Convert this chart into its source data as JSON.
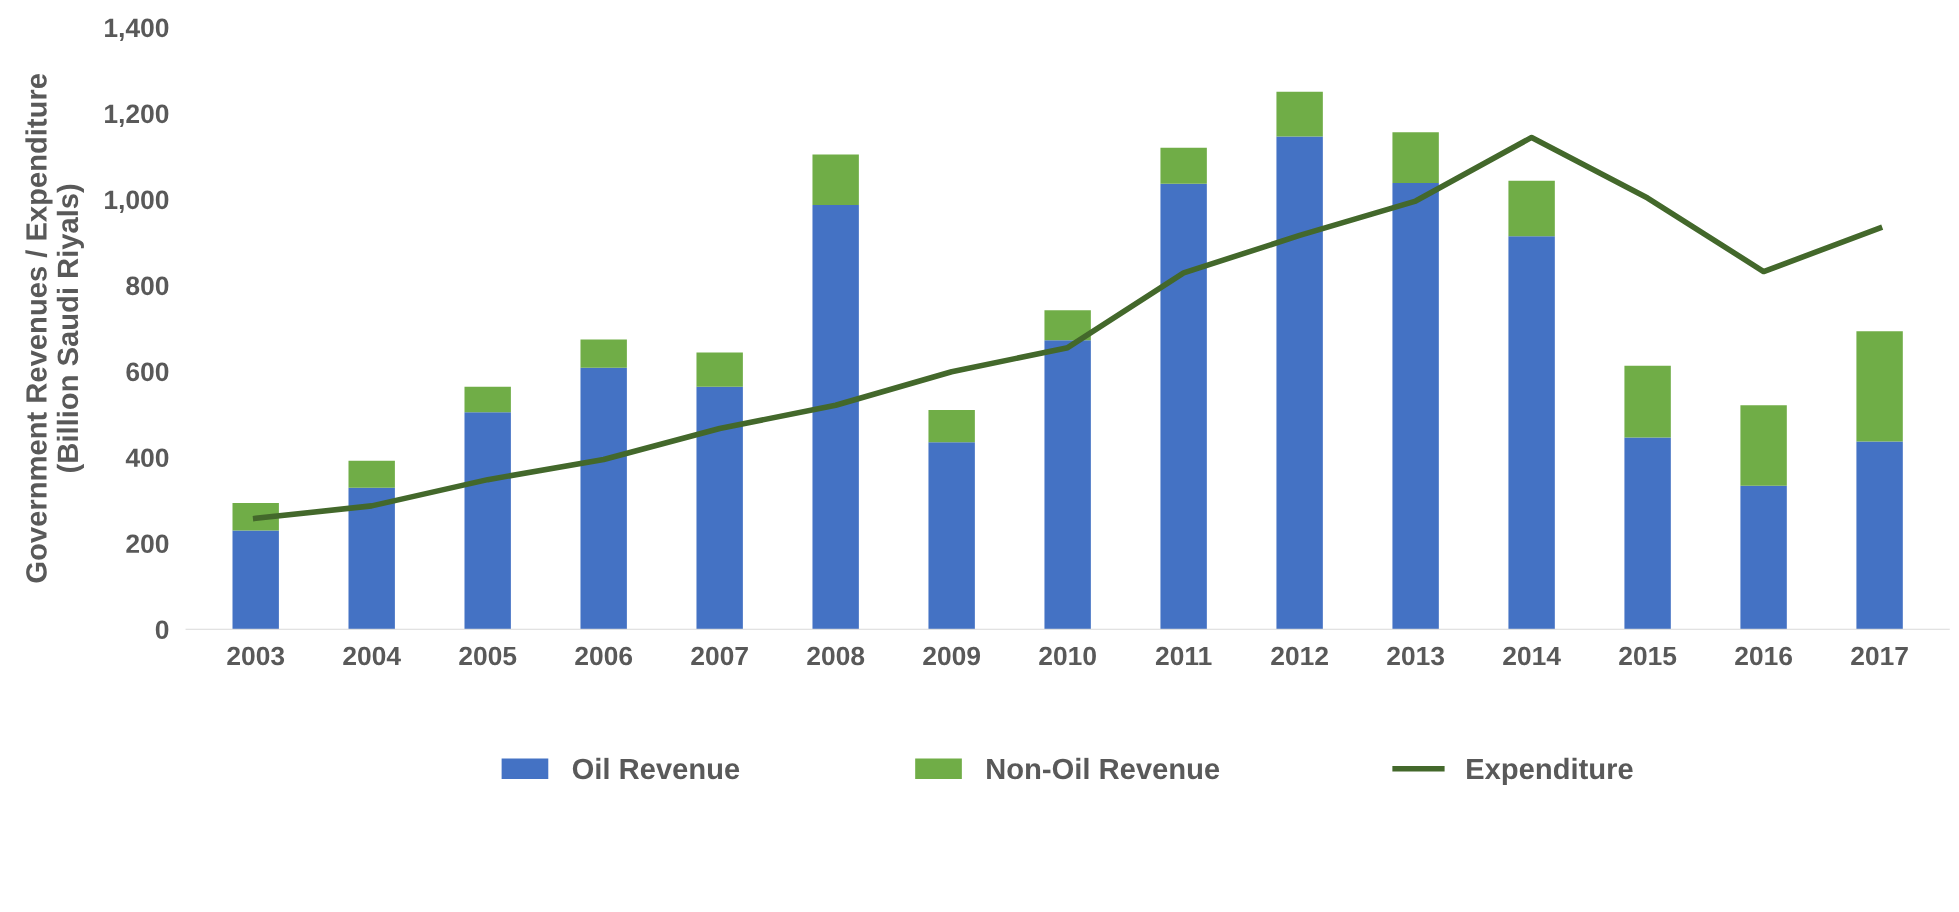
{
  "chart_data": {
    "type": "bar",
    "stacked": true,
    "ylabel": "Government Revenues / Expenditure\n(Billion Saudi Riyals)",
    "categories": [
      "2003",
      "2004",
      "2005",
      "2006",
      "2007",
      "2008",
      "2009",
      "2010",
      "2011",
      "2012",
      "2013",
      "2014",
      "2015",
      "2016",
      "2017"
    ],
    "series": [
      {
        "name": "Oil Revenue",
        "color": "#4472c4",
        "values": [
          230,
          329,
          505,
          608,
          564,
          987,
          435,
          672,
          1036,
          1146,
          1038,
          914,
          446,
          334,
          437
        ]
      },
      {
        "name": "Non-Oil Revenue",
        "color": "#70ad47",
        "values": [
          64,
          63,
          59,
          66,
          80,
          117,
          75,
          70,
          84,
          104,
          118,
          129,
          167,
          187,
          256
        ]
      },
      {
        "name": "Expenditure",
        "type": "line",
        "color": "#43682b",
        "values": [
          258,
          287,
          348,
          395,
          467,
          521,
          599,
          655,
          829,
          916,
          996,
          1144,
          1003,
          832,
          933
        ]
      }
    ],
    "ylim": [
      0,
      1400
    ],
    "yticks": [
      0,
      {
        "value": 200,
        "label": "200"
      },
      {
        "value": 400,
        "label": "400"
      },
      {
        "value": 600,
        "label": "600"
      },
      {
        "value": 800,
        "label": "800"
      },
      {
        "value": 1000,
        "label": "1,000"
      },
      {
        "value": 1200,
        "label": "1,200"
      },
      {
        "value": 1400,
        "label": "1,400"
      }
    ],
    "grid": false,
    "legend": "bottom"
  }
}
